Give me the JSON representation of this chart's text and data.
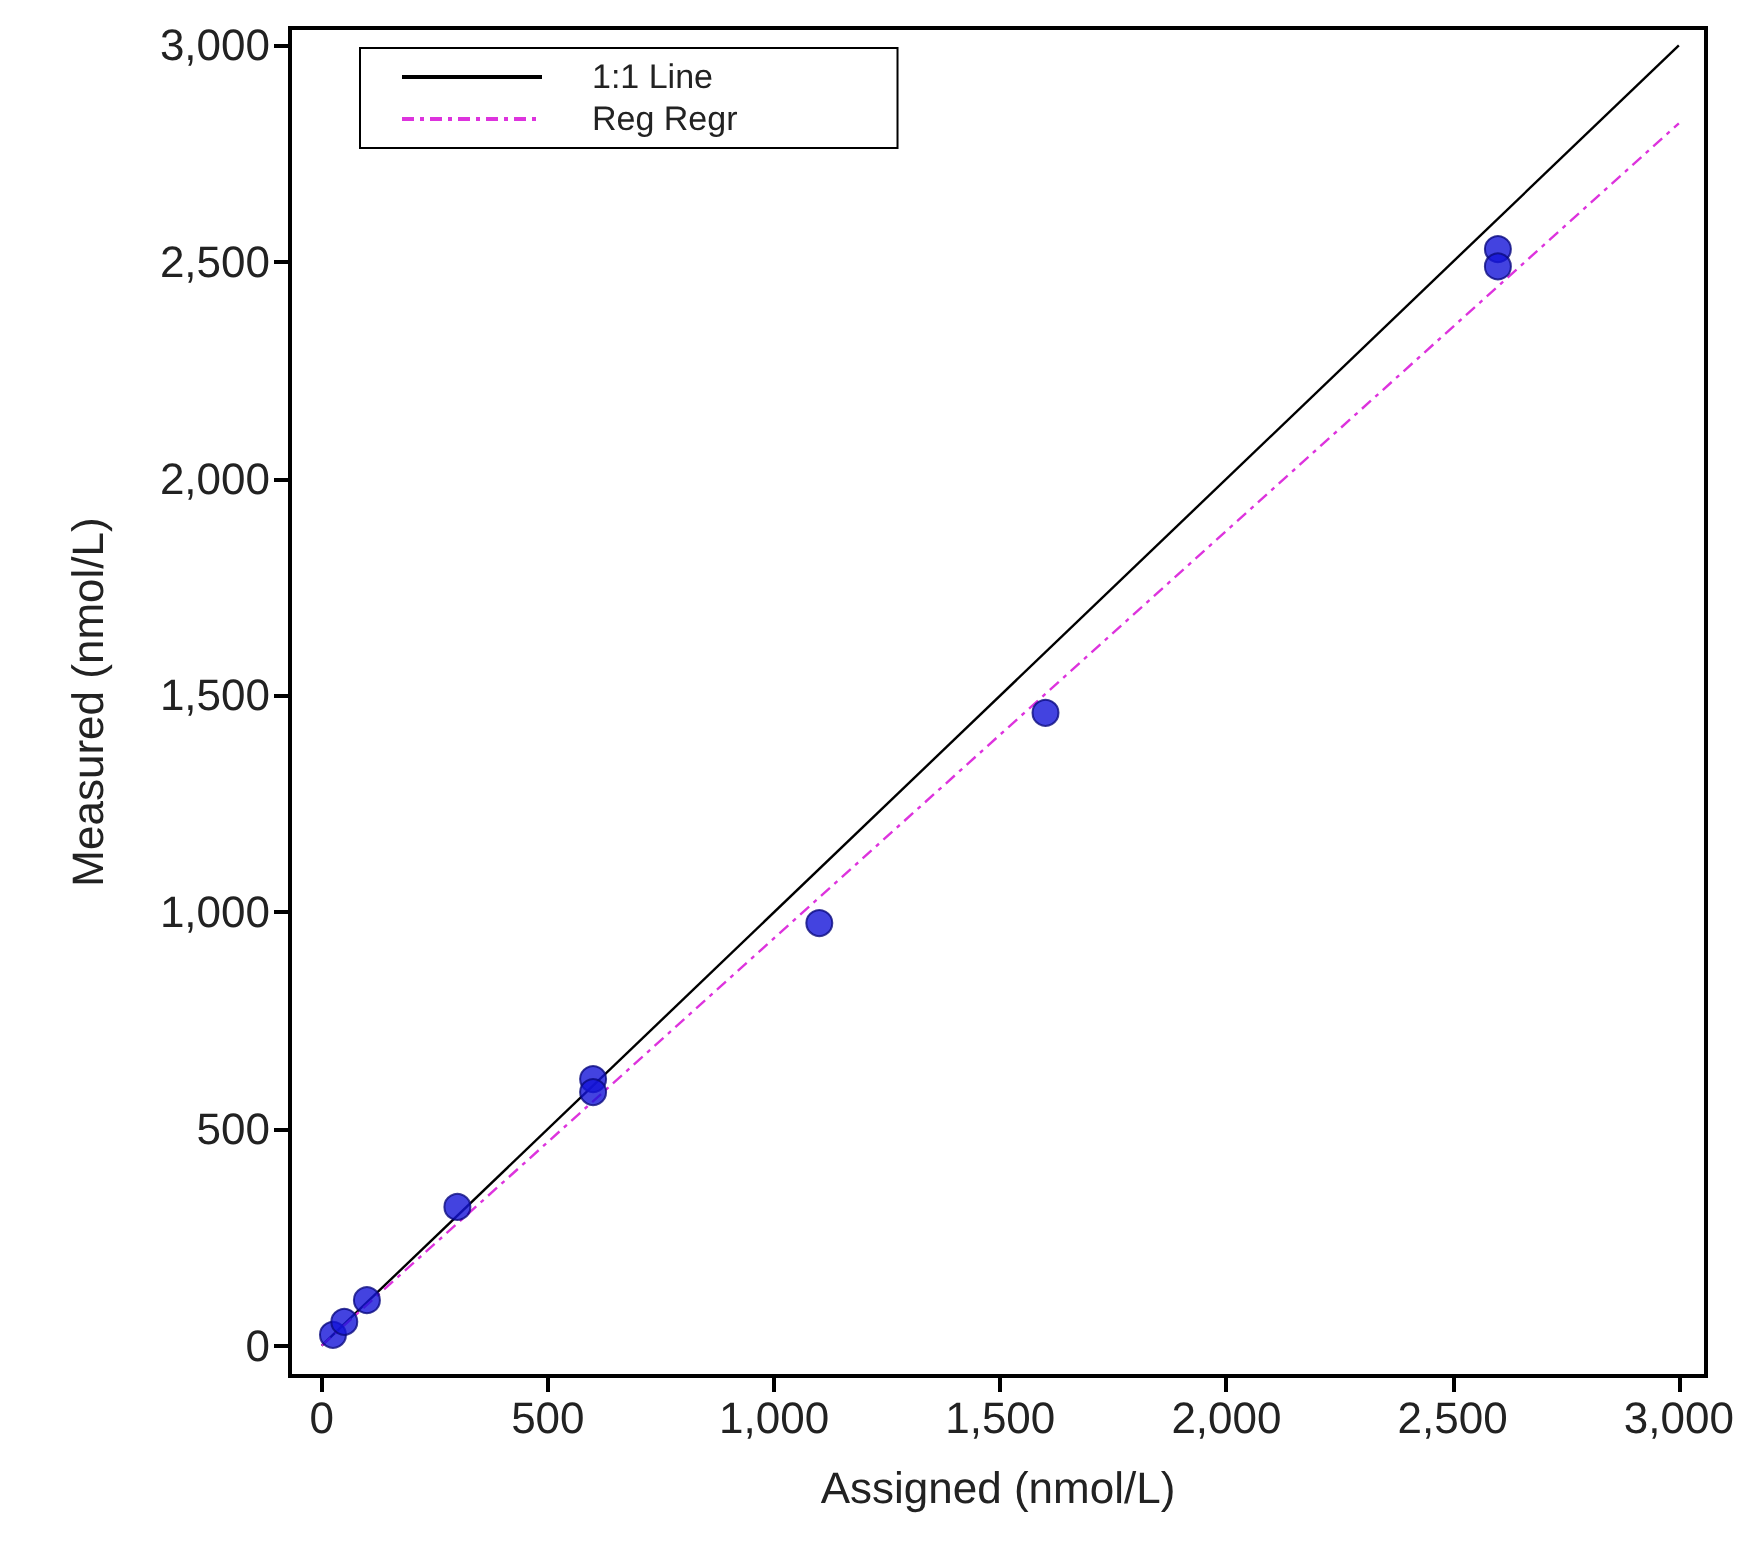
{
  "chart_data": {
    "type": "scatter",
    "xlabel": "Assigned (nmol/L)",
    "ylabel": "Measured (nmol/L)",
    "xlim": [
      -70,
      3060
    ],
    "ylim": [
      -70,
      3040
    ],
    "xticks": [
      0,
      500,
      {
        "value": 1000,
        "label": "1,000"
      },
      {
        "value": 1500,
        "label": "1,500"
      },
      {
        "value": 2000,
        "label": "2,000"
      },
      {
        "value": 2500,
        "label": "2,500"
      },
      {
        "value": 3000,
        "label": "3,000"
      }
    ],
    "yticks": [
      0,
      500,
      {
        "value": 1000,
        "label": "1,000"
      },
      {
        "value": 1500,
        "label": "1,500"
      },
      {
        "value": 2000,
        "label": "2,000"
      },
      {
        "value": 2500,
        "label": "2,500"
      },
      {
        "value": 3000,
        "label": "3,000"
      }
    ],
    "grid": false,
    "legend": "top left",
    "marker": "circle",
    "series": [
      {
        "type": "scatter",
        "color": "#1414d8",
        "x": [
          25,
          50,
          100,
          300,
          600,
          600,
          1100,
          1600,
          2600,
          2600
        ],
        "values": [
          25,
          55,
          105,
          320,
          615,
          585,
          975,
          1460,
          2530,
          2490
        ]
      },
      {
        "type": "line",
        "name": "1:1 Line",
        "color": "#000000",
        "line_style": "solid",
        "marker": "none",
        "x": [
          0,
          3000
        ],
        "values": [
          0,
          3000
        ]
      },
      {
        "type": "line",
        "name": "Reg Regr",
        "color": "#dd33dd",
        "line_style": "dashed",
        "marker": "none",
        "x": [
          0,
          3000
        ],
        "values": [
          0,
          2820
        ]
      }
    ]
  }
}
